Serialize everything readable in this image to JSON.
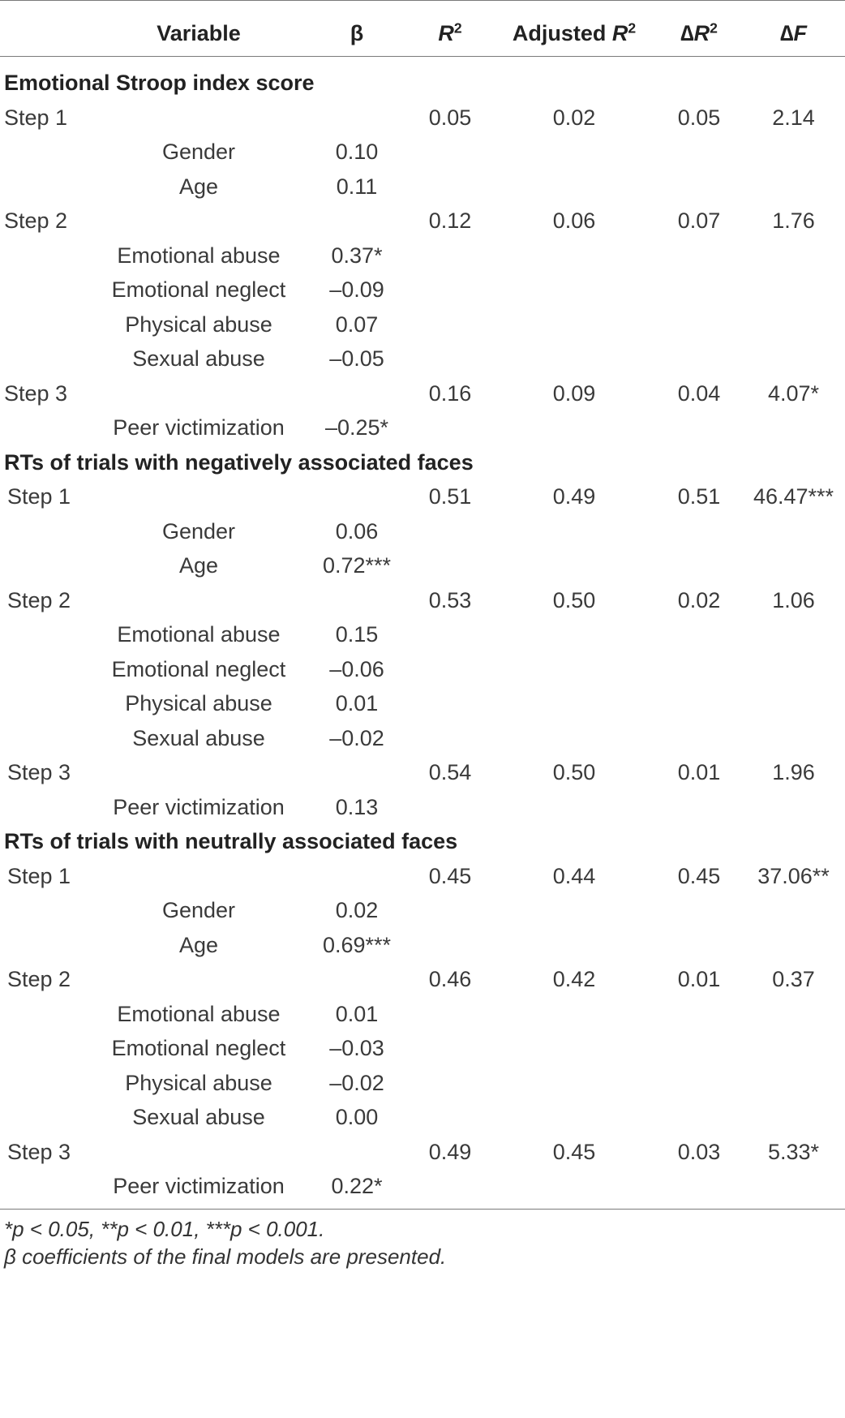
{
  "columns": {
    "variable": "Variable",
    "beta": "β",
    "r2_letter": "R",
    "r2_sup": "2",
    "adj_prefix": "Adjusted ",
    "adj_letter": "R",
    "adj_sup": "2",
    "dr2_prefix": "∆",
    "dr2_letter": "R",
    "dr2_sup": "2",
    "df_prefix": "∆",
    "df_letter": "F"
  },
  "sections": [
    {
      "title": "Emotional Stroop index score",
      "steps": [
        {
          "label": "Step 1",
          "r2": "0.05",
          "adj": "0.02",
          "dr2": "0.05",
          "df": "2.14",
          "predictors": [
            {
              "name": "Gender",
              "beta": "0.10"
            },
            {
              "name": "Age",
              "beta": "0.11"
            }
          ]
        },
        {
          "label": "Step 2",
          "r2": "0.12",
          "adj": "0.06",
          "dr2": "0.07",
          "df": "1.76",
          "predictors": [
            {
              "name": "Emotional abuse",
              "beta": "0.37*"
            },
            {
              "name": "Emotional neglect",
              "beta": "–0.09"
            },
            {
              "name": "Physical abuse",
              "beta": "0.07"
            },
            {
              "name": "Sexual abuse",
              "beta": "–0.05"
            }
          ]
        },
        {
          "label": "Step 3",
          "r2": "0.16",
          "adj": "0.09",
          "dr2": "0.04",
          "df": "4.07*",
          "predictors": [
            {
              "name": "Peer victimization",
              "beta": "–0.25*"
            }
          ]
        }
      ]
    },
    {
      "title": "RTs of trials with negatively associated faces",
      "steps": [
        {
          "label": "Step 1",
          "r2": "0.51",
          "adj": "0.49",
          "dr2": "0.51",
          "df": "46.47***",
          "predictors": [
            {
              "name": "Gender",
              "beta": "0.06"
            },
            {
              "name": "Age",
              "beta": "0.72***"
            }
          ]
        },
        {
          "label": "Step 2",
          "r2": "0.53",
          "adj": "0.50",
          "dr2": "0.02",
          "df": "1.06",
          "predictors": [
            {
              "name": "Emotional abuse",
              "beta": "0.15"
            },
            {
              "name": "Emotional neglect",
              "beta": "–0.06"
            },
            {
              "name": "Physical abuse",
              "beta": "0.01"
            },
            {
              "name": "Sexual abuse",
              "beta": "–0.02"
            }
          ]
        },
        {
          "label": "Step 3",
          "r2": "0.54",
          "adj": "0.50",
          "dr2": "0.01",
          "df": "1.96",
          "predictors": [
            {
              "name": "Peer victimization",
              "beta": "0.13"
            }
          ]
        }
      ]
    },
    {
      "title": "RTs of trials with neutrally associated faces",
      "steps": [
        {
          "label": "Step 1",
          "r2": "0.45",
          "adj": "0.44",
          "dr2": "0.45",
          "df": "37.06**",
          "predictors": [
            {
              "name": "Gender",
              "beta": "0.02"
            },
            {
              "name": "Age",
              "beta": "0.69***"
            }
          ]
        },
        {
          "label": "Step 2",
          "r2": "0.46",
          "adj": "0.42",
          "dr2": "0.01",
          "df": "0.37",
          "predictors": [
            {
              "name": "Emotional abuse",
              "beta": "0.01"
            },
            {
              "name": "Emotional neglect",
              "beta": "–0.03"
            },
            {
              "name": "Physical abuse",
              "beta": "–0.02"
            },
            {
              "name": "Sexual abuse",
              "beta": "0.00"
            }
          ]
        },
        {
          "label": "Step 3",
          "r2": "0.49",
          "adj": "0.45",
          "dr2": "0.03",
          "df": "5.33*",
          "predictors": [
            {
              "name": "Peer victimization",
              "beta": "0.22*"
            }
          ]
        }
      ]
    }
  ],
  "footnotes": [
    "*p < 0.05, **p < 0.01, ***p < 0.001.",
    "β coefficients of the final models are presented."
  ]
}
